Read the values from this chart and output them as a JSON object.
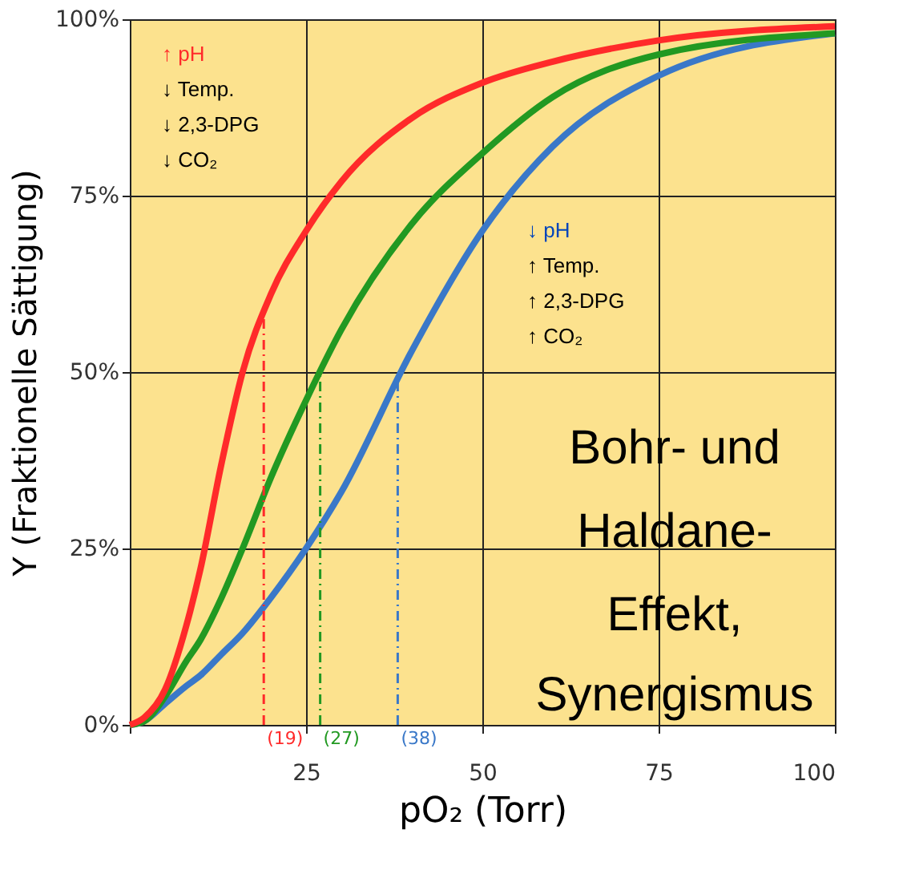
{
  "chart_data": {
    "type": "line",
    "xlabel": "pO₂ (Torr)",
    "ylabel": "Y (Fraktionelle Sättigung)",
    "x": [
      0,
      2,
      5,
      8,
      10,
      13,
      16,
      20,
      25,
      30,
      40,
      50,
      60,
      75,
      100
    ],
    "series": [
      {
        "color": "#ff2a2a",
        "values": [
          0,
          1,
          5,
          14,
          22,
          37,
          50,
          61,
          70,
          77,
          86,
          91,
          94,
          97,
          99
        ]
      },
      {
        "color": "#229922",
        "values": [
          0,
          0.5,
          4,
          9,
          12,
          18,
          25,
          35,
          46,
          56,
          71,
          81,
          89,
          95,
          98
        ]
      },
      {
        "color": "#3a78c8",
        "values": [
          0,
          0.5,
          3,
          5.5,
          7,
          10,
          13,
          18,
          25,
          33,
          53,
          70,
          82,
          92,
          98
        ]
      }
    ],
    "xlim": [
      0,
      100
    ],
    "ylim": [
      0,
      100
    ],
    "xticks": [
      {
        "value": 0,
        "label": null
      },
      25,
      50,
      75,
      100
    ],
    "yticks": [
      {
        "value": 0,
        "label": "0%"
      },
      {
        "value": 25,
        "label": "25%"
      },
      {
        "value": 50,
        "label": "50%"
      },
      {
        "value": 75,
        "label": "75%"
      },
      {
        "value": 100,
        "label": "100%"
      }
    ],
    "grid": true,
    "legend": false,
    "marker": "none",
    "line_style": "solid",
    "ref_lines": [
      {
        "axis": "x",
        "value": 19,
        "label": "(19)",
        "color": "#ff2a2a",
        "line_style": "dashed"
      },
      {
        "axis": "x",
        "value": 27,
        "label": "(27)",
        "color": "#229922",
        "line_style": "dashed"
      },
      {
        "axis": "x",
        "value": 38,
        "label": "(38)",
        "color": "#3a78c8",
        "line_style": "dashed"
      }
    ],
    "annotations": [
      "↑ pH",
      "↓ Temp.",
      "↓ 2,3-DPG",
      "↓ CO₂",
      "↓ pH",
      "↑ Temp.",
      "↑ 2,3-DPG",
      "↑ CO₂",
      "Bohr- und",
      "Haldane-",
      "Effekt,",
      "Synergismus"
    ]
  }
}
